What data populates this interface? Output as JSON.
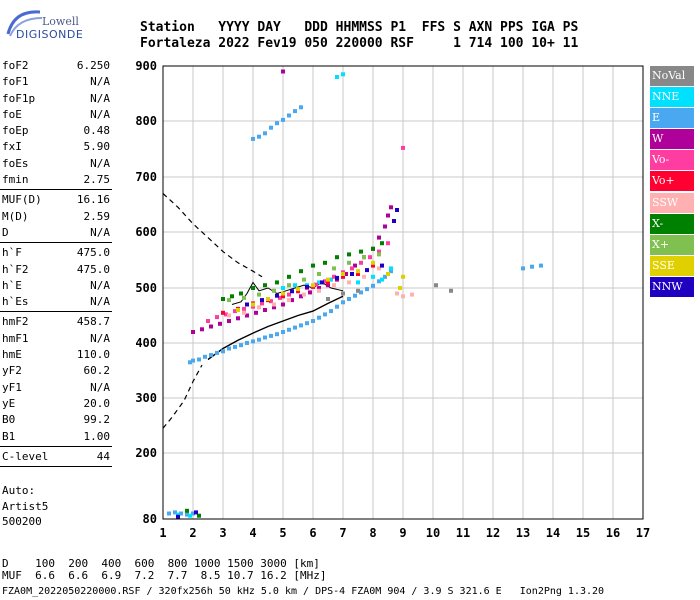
{
  "logo": {
    "line1": "Lowell",
    "line2": "DIGISONDE"
  },
  "header": {
    "line1": "Station   YYYY DAY   DDD HHMMSS P1  FFS S AXN PPS IGA PS",
    "line2": "Fortaleza 2022 Fev19 050 220000 RSF     1 714 100 10+ 11"
  },
  "params": {
    "group1": [
      {
        "label": "foF2",
        "value": "6.250"
      },
      {
        "label": "foF1",
        "value": "N/A"
      },
      {
        "label": "foF1p",
        "value": "N/A"
      },
      {
        "label": "foE",
        "value": "N/A"
      },
      {
        "label": "foEp",
        "value": "0.48"
      },
      {
        "label": "fxI",
        "value": "5.90"
      },
      {
        "label": "foEs",
        "value": "N/A"
      },
      {
        "label": "fmin",
        "value": "2.75"
      }
    ],
    "group2": [
      {
        "label": "MUF(D)",
        "value": "16.16"
      },
      {
        "label": "M(D)",
        "value": "2.59"
      },
      {
        "label": "D",
        "value": "N/A"
      }
    ],
    "group3": [
      {
        "label": "h`F",
        "value": "475.0"
      },
      {
        "label": "h`F2",
        "value": "475.0"
      },
      {
        "label": "h`E",
        "value": "N/A"
      },
      {
        "label": "h`Es",
        "value": "N/A"
      }
    ],
    "group4": [
      {
        "label": "hmF2",
        "value": "458.7"
      },
      {
        "label": "hmF1",
        "value": "N/A"
      },
      {
        "label": "hmE",
        "value": "110.0"
      },
      {
        "label": "yF2",
        "value": "60.2"
      },
      {
        "label": "yF1",
        "value": "N/A"
      },
      {
        "label": "yE",
        "value": "20.0"
      },
      {
        "label": "B0",
        "value": "99.2"
      },
      {
        "label": "B1",
        "value": "1.00"
      }
    ],
    "group5": [
      {
        "label": "C-level",
        "value": "44"
      }
    ]
  },
  "auto": {
    "line1": "Auto:",
    "line2": "Artist5",
    "line3": "500200"
  },
  "legend": [
    {
      "label": "NoVal",
      "color": "#888888"
    },
    {
      "label": "NNE",
      "color": "#00e0ff"
    },
    {
      "label": "E",
      "color": "#4aa8f0"
    },
    {
      "label": "W",
      "color": "#b0009a"
    },
    {
      "label": "Vo-",
      "color": "#ff3ca0"
    },
    {
      "label": "Vo+",
      "color": "#ff0030"
    },
    {
      "label": "SSW",
      "color": "#ffb0b0"
    },
    {
      "label": "X-",
      "color": "#008000"
    },
    {
      "label": "X+",
      "color": "#80c050"
    },
    {
      "label": "SSE",
      "color": "#e0d000"
    },
    {
      "label": "NNW",
      "color": "#2000c0"
    }
  ],
  "footer": {
    "line1": "D    100  200  400  600  800 1000 1500 3000 [km]",
    "line2": "MUF  6.6  6.6  6.9  7.2  7.7  8.5 10.7 16.2 [MHz]",
    "status": "FZA0M_2022050220000.RSF / 320fx256h 50 kHz 5.0 km / DPS-4 FZA0M 904 / 3.9 S 321.6 E   Ion2Png 1.3.20"
  },
  "chart_data": {
    "type": "scatter",
    "xlim": [
      1,
      17
    ],
    "ylim": [
      80,
      900
    ],
    "x_ticks": [
      1,
      2,
      3,
      4,
      5,
      6,
      7,
      8,
      9,
      10,
      11,
      12,
      13,
      14,
      15,
      16,
      17
    ],
    "y_ticks": [
      80,
      200,
      300,
      400,
      500,
      600,
      700,
      800,
      900
    ],
    "grid": true,
    "legend_placement": "right",
    "profile_curve": [
      [
        1.0,
        245
      ],
      [
        1.5,
        290
      ],
      [
        2.0,
        340
      ],
      [
        2.5,
        370
      ],
      [
        3.0,
        390
      ],
      [
        3.5,
        405
      ],
      [
        4.0,
        418
      ],
      [
        4.5,
        430
      ],
      [
        5.0,
        440
      ],
      [
        5.5,
        450
      ],
      [
        6.0,
        458
      ],
      [
        6.5,
        472
      ],
      [
        7.0,
        485
      ]
    ],
    "dashed_upper": [
      [
        1.0,
        670
      ],
      [
        1.5,
        645
      ],
      [
        2.0,
        615
      ],
      [
        2.5,
        590
      ],
      [
        3.0,
        565
      ],
      [
        3.5,
        545
      ],
      [
        4.0,
        530
      ],
      [
        4.3,
        520
      ]
    ],
    "dashed_lower": [
      [
        1.0,
        245
      ],
      [
        1.3,
        265
      ],
      [
        1.7,
        295
      ],
      [
        2.0,
        330
      ],
      [
        2.3,
        360
      ]
    ],
    "trace": [
      [
        3.3,
        470
      ],
      [
        3.6,
        475
      ],
      [
        3.8,
        490
      ],
      [
        4.0,
        510
      ],
      [
        4.2,
        495
      ],
      [
        4.5,
        500
      ],
      [
        4.8,
        490
      ],
      [
        5.1,
        495
      ],
      [
        5.4,
        500
      ],
      [
        5.7,
        505
      ],
      [
        6.0,
        500
      ],
      [
        6.3,
        510
      ],
      [
        6.6,
        500
      ],
      [
        7.0,
        495
      ]
    ],
    "point_groups": [
      {
        "color": "#4aa8f0",
        "points": [
          [
            1.9,
            365
          ],
          [
            2.0,
            368
          ],
          [
            2.2,
            370
          ],
          [
            2.4,
            375
          ],
          [
            2.6,
            378
          ],
          [
            2.8,
            382
          ],
          [
            3.0,
            385
          ],
          [
            3.2,
            390
          ],
          [
            3.4,
            393
          ],
          [
            3.6,
            396
          ],
          [
            3.8,
            400
          ],
          [
            4.0,
            403
          ],
          [
            4.2,
            406
          ],
          [
            4.4,
            410
          ],
          [
            4.6,
            413
          ],
          [
            4.8,
            416
          ],
          [
            5.0,
            420
          ],
          [
            5.2,
            424
          ],
          [
            5.4,
            428
          ],
          [
            5.6,
            432
          ],
          [
            5.8,
            436
          ],
          [
            6.0,
            440
          ],
          [
            6.2,
            446
          ],
          [
            6.4,
            452
          ],
          [
            6.6,
            458
          ],
          [
            6.8,
            466
          ],
          [
            7.0,
            474
          ],
          [
            7.2,
            480
          ],
          [
            7.4,
            486
          ],
          [
            7.6,
            492
          ],
          [
            7.8,
            498
          ],
          [
            8.0,
            504
          ],
          [
            8.2,
            512
          ],
          [
            8.4,
            520
          ],
          [
            8.6,
            530
          ],
          [
            4.0,
            768
          ],
          [
            4.2,
            772
          ],
          [
            4.4,
            778
          ],
          [
            4.6,
            788
          ],
          [
            4.8,
            796
          ],
          [
            5.0,
            802
          ],
          [
            5.2,
            810
          ],
          [
            5.4,
            818
          ],
          [
            5.6,
            825
          ],
          [
            13.0,
            535
          ],
          [
            13.3,
            538
          ],
          [
            13.6,
            540
          ],
          [
            1.2,
            90
          ],
          [
            1.4,
            92
          ],
          [
            1.6,
            90
          ],
          [
            1.8,
            88
          ],
          [
            2.0,
            90
          ]
        ]
      },
      {
        "color": "#00e0ff",
        "points": [
          [
            6.8,
            880
          ],
          [
            7.0,
            885
          ],
          [
            5.8,
            505
          ],
          [
            6.2,
            510
          ],
          [
            6.6,
            515
          ],
          [
            7.0,
            520
          ],
          [
            7.5,
            510
          ],
          [
            8.0,
            520
          ],
          [
            8.3,
            515
          ],
          [
            8.6,
            535
          ],
          [
            5.0,
            500
          ],
          [
            5.4,
            505
          ],
          [
            1.5,
            88
          ],
          [
            1.9,
            86
          ]
        ]
      },
      {
        "color": "#b0009a",
        "points": [
          [
            2.0,
            420
          ],
          [
            2.3,
            425
          ],
          [
            2.6,
            430
          ],
          [
            2.9,
            435
          ],
          [
            3.2,
            440
          ],
          [
            3.5,
            445
          ],
          [
            3.8,
            450
          ],
          [
            4.1,
            455
          ],
          [
            4.4,
            460
          ],
          [
            4.7,
            465
          ],
          [
            5.0,
            470
          ],
          [
            5.3,
            478
          ],
          [
            5.6,
            485
          ],
          [
            5.9,
            492
          ],
          [
            6.2,
            500
          ],
          [
            6.5,
            505
          ],
          [
            6.8,
            515
          ],
          [
            7.1,
            525
          ],
          [
            7.4,
            540
          ],
          [
            7.7,
            555
          ],
          [
            8.0,
            570
          ],
          [
            8.2,
            590
          ],
          [
            8.4,
            610
          ],
          [
            8.5,
            630
          ],
          [
            8.6,
            645
          ],
          [
            5.0,
            890
          ]
        ]
      },
      {
        "color": "#ff3ca0",
        "points": [
          [
            2.5,
            440
          ],
          [
            2.8,
            447
          ],
          [
            3.1,
            452
          ],
          [
            3.4,
            458
          ],
          [
            3.7,
            462
          ],
          [
            4.0,
            466
          ],
          [
            4.3,
            472
          ],
          [
            4.6,
            476
          ],
          [
            4.9,
            482
          ],
          [
            5.2,
            488
          ],
          [
            5.5,
            494
          ],
          [
            5.8,
            500
          ],
          [
            6.1,
            506
          ],
          [
            6.4,
            512
          ],
          [
            6.7,
            520
          ],
          [
            7.0,
            528
          ],
          [
            7.3,
            535
          ],
          [
            7.6,
            545
          ],
          [
            7.9,
            555
          ],
          [
            8.2,
            565
          ],
          [
            8.5,
            580
          ],
          [
            9.0,
            752
          ]
        ]
      },
      {
        "color": "#ff0030",
        "points": [
          [
            3.0,
            455
          ],
          [
            3.5,
            462
          ],
          [
            4.0,
            472
          ],
          [
            4.5,
            478
          ],
          [
            5.0,
            485
          ],
          [
            5.5,
            495
          ],
          [
            6.0,
            502
          ],
          [
            6.5,
            510
          ],
          [
            7.0,
            520
          ],
          [
            7.5,
            525
          ],
          [
            8.0,
            540
          ]
        ]
      },
      {
        "color": "#ffb0b0",
        "points": [
          [
            3.2,
            450
          ],
          [
            3.7,
            455
          ],
          [
            4.2,
            465
          ],
          [
            4.7,
            470
          ],
          [
            5.2,
            478
          ],
          [
            5.7,
            488
          ],
          [
            6.2,
            495
          ],
          [
            6.7,
            505
          ],
          [
            7.2,
            510
          ],
          [
            7.7,
            520
          ],
          [
            8.2,
            535
          ],
          [
            8.8,
            490
          ],
          [
            9.0,
            485
          ],
          [
            9.3,
            488
          ]
        ]
      },
      {
        "color": "#008000",
        "points": [
          [
            3.0,
            480
          ],
          [
            3.3,
            485
          ],
          [
            3.6,
            490
          ],
          [
            4.0,
            500
          ],
          [
            4.4,
            505
          ],
          [
            4.8,
            510
          ],
          [
            5.2,
            520
          ],
          [
            5.6,
            530
          ],
          [
            6.0,
            540
          ],
          [
            6.4,
            545
          ],
          [
            6.8,
            555
          ],
          [
            7.2,
            560
          ],
          [
            7.6,
            565
          ],
          [
            8.0,
            570
          ],
          [
            8.3,
            580
          ],
          [
            1.8,
            95
          ],
          [
            2.2,
            86
          ]
        ]
      },
      {
        "color": "#80c050",
        "points": [
          [
            3.2,
            478
          ],
          [
            3.7,
            482
          ],
          [
            4.2,
            488
          ],
          [
            4.7,
            495
          ],
          [
            5.2,
            505
          ],
          [
            5.7,
            515
          ],
          [
            6.2,
            525
          ],
          [
            6.7,
            535
          ],
          [
            7.2,
            545
          ],
          [
            7.7,
            555
          ],
          [
            8.2,
            560
          ]
        ]
      },
      {
        "color": "#e0d000",
        "points": [
          [
            3.5,
            460
          ],
          [
            4.0,
            470
          ],
          [
            4.5,
            480
          ],
          [
            5.0,
            490
          ],
          [
            5.5,
            498
          ],
          [
            6.0,
            505
          ],
          [
            6.5,
            515
          ],
          [
            7.0,
            525
          ],
          [
            7.5,
            530
          ],
          [
            8.0,
            545
          ],
          [
            8.5,
            525
          ],
          [
            8.9,
            500
          ],
          [
            9.0,
            520
          ]
        ]
      },
      {
        "color": "#2000c0",
        "points": [
          [
            3.8,
            470
          ],
          [
            4.3,
            478
          ],
          [
            4.8,
            486
          ],
          [
            5.3,
            494
          ],
          [
            5.8,
            502
          ],
          [
            6.3,
            510
          ],
          [
            6.8,
            518
          ],
          [
            7.3,
            525
          ],
          [
            7.8,
            532
          ],
          [
            8.3,
            540
          ],
          [
            8.7,
            620
          ],
          [
            8.8,
            640
          ],
          [
            1.5,
            84
          ],
          [
            2.1,
            92
          ]
        ]
      },
      {
        "color": "#888888",
        "points": [
          [
            6.5,
            480
          ],
          [
            7.0,
            490
          ],
          [
            7.5,
            495
          ],
          [
            10.1,
            505
          ],
          [
            10.6,
            495
          ]
        ]
      }
    ]
  }
}
